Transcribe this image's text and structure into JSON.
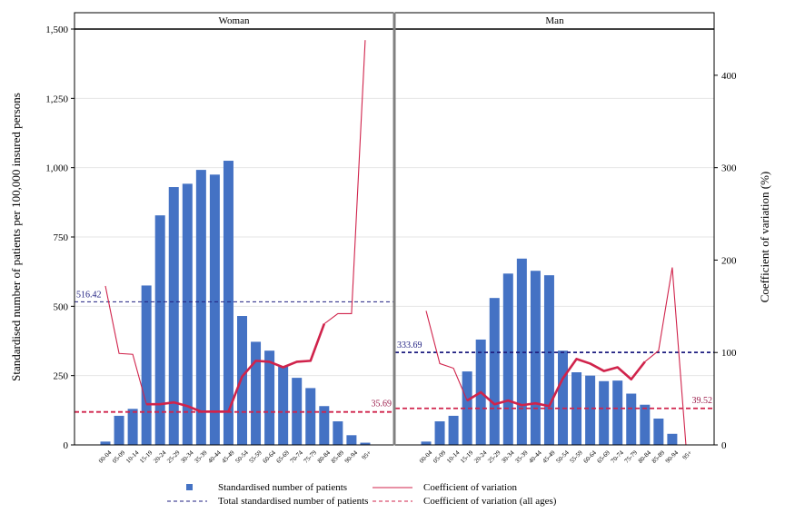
{
  "chart_data": {
    "type": "bar",
    "ylabel_left": "Standardised number of patients per 100,000 insured persons",
    "ylabel_right": "Coefficient of variation (%)",
    "ylim_left": [
      0,
      1500
    ],
    "ylim_right": [
      0,
      450
    ],
    "yticks_left": [
      "0",
      "250",
      "500",
      "750",
      "1,000",
      "1,250",
      "1,500"
    ],
    "yticks_left_values": [
      0,
      250,
      500,
      750,
      1000,
      1250,
      1500
    ],
    "yticks_right": [
      "0",
      "100",
      "200",
      "300",
      "400"
    ],
    "yticks_right_values": [
      0,
      100,
      200,
      300,
      400
    ],
    "categories": [
      "00-04",
      "05-09",
      "10-14",
      "15-19",
      "20-24",
      "25-29",
      "30-34",
      "35-39",
      "40-44",
      "45-49",
      "50-54",
      "55-59",
      "60-64",
      "65-69",
      "70-74",
      "75-79",
      "80-84",
      "85-89",
      "90-94",
      "95+"
    ],
    "panels": [
      {
        "title": "Woman",
        "bars": [
          12,
          105,
          130,
          575,
          828,
          930,
          942,
          992,
          975,
          1025,
          465,
          372,
          340,
          283,
          242,
          205,
          140,
          85,
          35,
          8
        ],
        "cv_thin": [
          172,
          99,
          98,
          44,
          44,
          46,
          42,
          36,
          36,
          36,
          74,
          91,
          90,
          84,
          90,
          91,
          131,
          142,
          142,
          438
        ],
        "cv_thick_range": [
          3,
          16
        ],
        "total": 516.42,
        "total_label": "516.42",
        "cv_all": 35.69,
        "cv_all_label": "35.69"
      },
      {
        "title": "Man",
        "bars": [
          12,
          85,
          105,
          265,
          380,
          530,
          618,
          672,
          628,
          612,
          340,
          262,
          250,
          230,
          232,
          185,
          145,
          95,
          40,
          0
        ],
        "cv_thin": [
          145,
          88,
          83,
          48,
          57,
          44,
          48,
          43,
          45,
          42,
          72,
          93,
          88,
          80,
          84,
          71,
          90,
          102,
          192,
          0
        ],
        "cv_thick_range": [
          3,
          16
        ],
        "total": 333.69,
        "total_label": "333.69",
        "cv_all": 39.52,
        "cv_all_label": "39.52"
      }
    ],
    "legend": [
      {
        "label": "Standardised number of patients",
        "kind": "bar"
      },
      {
        "label": "Coefficient of variation",
        "kind": "thin-line"
      },
      {
        "label": "Total standardised number of patients",
        "kind": "navy-dash"
      },
      {
        "label": "Coefficient of variation (all ages)",
        "kind": "red-dash"
      }
    ],
    "colors": {
      "bar": "#4472c4",
      "cv_line": "#d0234b",
      "total_line": "#1f1f80",
      "cv_all_line": "#d0234b",
      "cv_all_text": "#9b1c4a"
    }
  }
}
